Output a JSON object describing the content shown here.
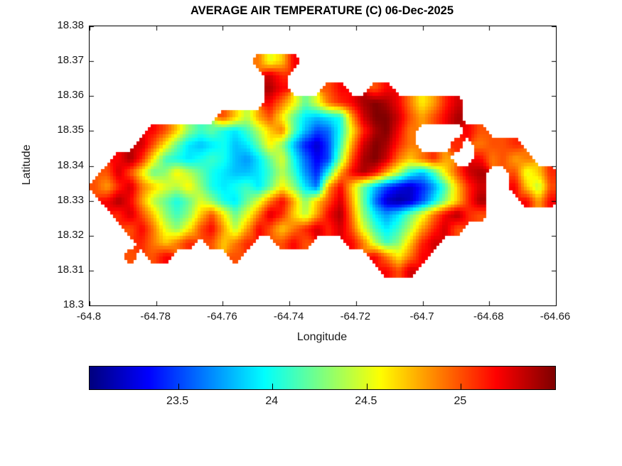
{
  "chart_data": {
    "type": "heatmap",
    "title": "AVERAGE AIR TEMPERATURE (C) 06-Dec-2025",
    "xlabel": "Longitude",
    "ylabel": "Latitude",
    "xlim": [
      -64.8,
      -64.66
    ],
    "ylim": [
      18.3,
      18.38
    ],
    "grid_lines": "off",
    "xtick_values": [
      -64.8,
      -64.78,
      -64.76,
      -64.74,
      -64.72,
      -64.7,
      -64.68,
      -64.66
    ],
    "xtick_labels": [
      "-64.8",
      "-64.78",
      "-64.76",
      "-64.74",
      "-64.72",
      "-64.7",
      "-64.68",
      "-64.66"
    ],
    "ytick_values": [
      18.38,
      18.37,
      18.36,
      18.35,
      18.34,
      18.33,
      18.32,
      18.31,
      18.3
    ],
    "ytick_labels": [
      "18.38",
      "18.37",
      "18.36",
      "18.35",
      "18.34",
      "18.33",
      "18.32",
      "18.31",
      "18.3"
    ],
    "colormap": "jet",
    "colorbar": {
      "orientation": "horizontal",
      "vmin": 23.03,
      "vmax": 25.5,
      "tick_values": [
        23.5,
        24,
        24.5,
        25
      ],
      "tick_labels": [
        "23.5",
        "24",
        "24.5",
        "25"
      ]
    },
    "grid": {
      "comment": "Estimated air-temperature field (deg C) over the island; null = water/no data. Row-major from NW corner.",
      "ncols": 40,
      "nrows": 20,
      "x_start": -64.8,
      "x_step": 0.0035,
      "y_start": 18.38,
      "y_step": -0.004,
      "values": [
        [
          null,
          null,
          null,
          null,
          null,
          null,
          null,
          null,
          null,
          null,
          null,
          null,
          null,
          null,
          null,
          null,
          null,
          null,
          null,
          null,
          null,
          null,
          null,
          null,
          null,
          null,
          null,
          null,
          null,
          null,
          null,
          null,
          null,
          null,
          null,
          null,
          null,
          null,
          null,
          null
        ],
        [
          null,
          null,
          null,
          null,
          null,
          null,
          null,
          null,
          null,
          null,
          null,
          null,
          null,
          null,
          null,
          null,
          null,
          null,
          null,
          null,
          null,
          null,
          null,
          null,
          null,
          null,
          null,
          null,
          null,
          null,
          null,
          null,
          null,
          null,
          null,
          null,
          null,
          null,
          null,
          null
        ],
        [
          null,
          null,
          null,
          null,
          null,
          null,
          null,
          null,
          null,
          null,
          null,
          null,
          null,
          null,
          24.9,
          24.5,
          24.7,
          25.2,
          null,
          null,
          null,
          null,
          null,
          null,
          null,
          null,
          null,
          null,
          null,
          null,
          null,
          null,
          null,
          null,
          null,
          null,
          null,
          null,
          null,
          null
        ],
        [
          null,
          null,
          null,
          null,
          null,
          null,
          null,
          null,
          null,
          null,
          null,
          null,
          null,
          null,
          null,
          25.3,
          25.1,
          null,
          null,
          null,
          null,
          null,
          null,
          null,
          null,
          null,
          null,
          null,
          null,
          null,
          null,
          null,
          null,
          null,
          null,
          null,
          null,
          null,
          null,
          null
        ],
        [
          null,
          null,
          null,
          null,
          null,
          null,
          null,
          null,
          null,
          null,
          null,
          null,
          null,
          null,
          null,
          25.4,
          25.2,
          null,
          null,
          null,
          25.0,
          25.2,
          null,
          null,
          25.0,
          25.2,
          null,
          null,
          null,
          null,
          null,
          null,
          null,
          null,
          null,
          null,
          null,
          null,
          null,
          null
        ],
        [
          null,
          null,
          null,
          null,
          null,
          null,
          null,
          null,
          null,
          null,
          null,
          null,
          null,
          null,
          null,
          25.2,
          24.9,
          24.6,
          24.2,
          24.5,
          24.9,
          25.1,
          25.2,
          25.4,
          25.5,
          25.4,
          25.2,
          24.9,
          24.6,
          24.8,
          25.1,
          25.3,
          null,
          null,
          null,
          null,
          null,
          null,
          null,
          null
        ],
        [
          null,
          null,
          null,
          null,
          null,
          null,
          null,
          null,
          null,
          null,
          null,
          25.0,
          24.7,
          24.4,
          24.8,
          25.0,
          24.6,
          24.2,
          23.9,
          23.8,
          23.9,
          24.0,
          24.8,
          25.3,
          25.5,
          25.5,
          25.3,
          25.0,
          24.8,
          25.0,
          25.2,
          25.4,
          null,
          null,
          null,
          null,
          null,
          null,
          null,
          null
        ],
        [
          null,
          null,
          null,
          null,
          null,
          25.2,
          25.0,
          24.7,
          24.3,
          24.1,
          24.2,
          24.0,
          23.9,
          24.1,
          24.4,
          24.7,
          24.9,
          24.2,
          23.8,
          23.5,
          23.6,
          24.0,
          24.6,
          25.1,
          25.4,
          25.5,
          25.2,
          24.9,
          null,
          null,
          null,
          null,
          25.2,
          25.0,
          null,
          null,
          null,
          null,
          null,
          null
        ],
        [
          null,
          null,
          null,
          null,
          25.3,
          25.0,
          24.6,
          24.2,
          23.9,
          23.8,
          23.9,
          24.0,
          23.8,
          23.9,
          24.2,
          24.6,
          24.3,
          23.8,
          23.4,
          23.2,
          23.5,
          24.1,
          24.8,
          25.3,
          25.5,
          25.4,
          25.1,
          24.9,
          null,
          null,
          null,
          25.1,
          null,
          24.9,
          25.0,
          25.0,
          25.1,
          null,
          null,
          null
        ],
        [
          null,
          null,
          25.2,
          25.4,
          25.1,
          24.6,
          24.1,
          24.0,
          23.9,
          24.0,
          24.1,
          24.0,
          23.8,
          23.7,
          23.9,
          24.2,
          24.5,
          24.0,
          23.6,
          23.3,
          23.5,
          24.3,
          25.0,
          25.4,
          25.5,
          25.3,
          24.9,
          24.7,
          24.9,
          25.1,
          24.8,
          null,
          null,
          25.2,
          24.9,
          25.0,
          24.8,
          24.9,
          null,
          null
        ],
        [
          null,
          25.0,
          25.3,
          25.0,
          24.6,
          24.2,
          24.3,
          24.6,
          24.4,
          24.2,
          24.0,
          23.9,
          23.8,
          23.8,
          23.9,
          24.1,
          24.4,
          24.1,
          23.7,
          23.4,
          24.0,
          24.8,
          25.2,
          25.4,
          25.2,
          24.8,
          24.4,
          24.0,
          23.8,
          24.1,
          24.6,
          25.0,
          25.3,
          25.4,
          null,
          null,
          25.0,
          24.5,
          24.7,
          25.1
        ],
        [
          25.0,
          24.8,
          25.1,
          25.3,
          24.9,
          24.7,
          24.5,
          24.4,
          24.6,
          24.3,
          24.0,
          23.9,
          24.0,
          24.1,
          23.9,
          24.2,
          24.6,
          24.3,
          23.9,
          23.6,
          24.8,
          25.2,
          24.7,
          24.2,
          23.8,
          23.5,
          23.3,
          23.2,
          23.4,
          23.7,
          24.1,
          24.7,
          25.1,
          25.3,
          null,
          null,
          25.2,
          24.7,
          24.4,
          25.0
        ],
        [
          null,
          25.2,
          25.4,
          25.2,
          24.8,
          24.4,
          24.2,
          24.0,
          24.2,
          24.5,
          24.3,
          24.0,
          23.9,
          24.2,
          24.5,
          24.9,
          25.2,
          24.8,
          24.3,
          24.7,
          25.0,
          25.3,
          24.8,
          24.2,
          23.6,
          23.2,
          23.1,
          23.2,
          23.5,
          23.9,
          24.3,
          24.7,
          25.1,
          25.4,
          null,
          null,
          null,
          25.2,
          24.8,
          25.2
        ],
        [
          null,
          null,
          25.1,
          25.3,
          25.0,
          24.7,
          24.3,
          24.1,
          24.3,
          24.7,
          25.0,
          24.6,
          24.2,
          24.5,
          24.9,
          25.3,
          25.1,
          24.7,
          24.4,
          24.8,
          25.2,
          25.4,
          24.9,
          24.3,
          23.9,
          23.7,
          23.9,
          24.2,
          24.5,
          24.9,
          25.2,
          25.4,
          25.1,
          25.0,
          null,
          null,
          null,
          null,
          null,
          null
        ],
        [
          null,
          null,
          null,
          25.0,
          25.2,
          24.9,
          24.5,
          24.3,
          24.6,
          25.0,
          25.2,
          24.8,
          24.4,
          24.8,
          25.2,
          25.0,
          24.7,
          24.9,
          25.1,
          25.3,
          25.1,
          25.3,
          25.0,
          24.5,
          24.1,
          23.9,
          24.1,
          24.4,
          24.8,
          25.1,
          25.3,
          25.0,
          null,
          null,
          null,
          null,
          null,
          null,
          null,
          null
        ],
        [
          null,
          null,
          null,
          null,
          25.1,
          24.9,
          24.7,
          24.9,
          25.1,
          null,
          25.0,
          24.7,
          24.9,
          25.1,
          null,
          null,
          25.0,
          25.2,
          25.0,
          null,
          null,
          null,
          25.2,
          24.9,
          24.4,
          24.1,
          24.3,
          24.7,
          25.1,
          25.3,
          null,
          null,
          null,
          null,
          null,
          null,
          null,
          null,
          null,
          null
        ],
        [
          null,
          null,
          null,
          25.0,
          null,
          25.0,
          25.2,
          null,
          null,
          null,
          null,
          null,
          25.0,
          null,
          null,
          null,
          null,
          null,
          null,
          null,
          null,
          null,
          null,
          null,
          25.2,
          24.9,
          24.6,
          24.9,
          25.2,
          null,
          null,
          null,
          null,
          null,
          null,
          null,
          null,
          null,
          null,
          null
        ],
        [
          null,
          null,
          null,
          null,
          null,
          null,
          null,
          null,
          null,
          null,
          null,
          null,
          null,
          null,
          null,
          null,
          null,
          null,
          null,
          null,
          null,
          null,
          null,
          null,
          null,
          25.2,
          25.0,
          25.3,
          null,
          null,
          null,
          null,
          null,
          null,
          null,
          null,
          null,
          null,
          null,
          null
        ],
        [
          null,
          null,
          null,
          null,
          null,
          null,
          null,
          null,
          null,
          null,
          null,
          null,
          null,
          null,
          null,
          null,
          null,
          null,
          null,
          null,
          null,
          null,
          null,
          null,
          null,
          null,
          null,
          null,
          null,
          null,
          null,
          null,
          null,
          null,
          null,
          null,
          null,
          null,
          null,
          null
        ],
        [
          null,
          null,
          null,
          null,
          null,
          null,
          null,
          null,
          null,
          null,
          null,
          null,
          null,
          null,
          null,
          null,
          null,
          null,
          null,
          null,
          null,
          null,
          null,
          null,
          null,
          null,
          null,
          null,
          null,
          null,
          null,
          null,
          null,
          null,
          null,
          null,
          null,
          null,
          null,
          null
        ]
      ]
    }
  }
}
